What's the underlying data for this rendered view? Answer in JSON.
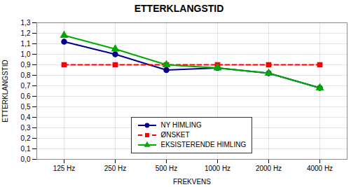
{
  "chart_data": {
    "type": "line",
    "title": "ETTERKLANGSTID",
    "xlabel": "FREKVENS",
    "ylabel": "ETTERKLANGSTID",
    "categories": [
      "125 Hz",
      "250 Hz",
      "500 Hz",
      "1000 Hz",
      "2000 Hz",
      "4000 Hz"
    ],
    "series": [
      {
        "name": "NY HIMLING",
        "color": "#00008B",
        "marker": "circle",
        "line_style": "solid",
        "values": [
          1.12,
          1.0,
          0.85,
          0.87,
          0.82,
          0.68
        ]
      },
      {
        "name": "ØNSKET",
        "color": "#FF0000",
        "marker": "square",
        "line_style": "dashed",
        "values": [
          0.9,
          0.9,
          0.9,
          0.9,
          0.9,
          0.9
        ]
      },
      {
        "name": "EKSISTERENDE HIMLING",
        "color": "#00AA00",
        "marker": "triangle",
        "line_style": "solid",
        "values": [
          1.18,
          1.05,
          0.9,
          0.87,
          0.82,
          0.68
        ]
      }
    ],
    "ylim": [
      0.0,
      1.3
    ],
    "yticks": [
      {
        "value": 0.0,
        "label": "0,0"
      },
      {
        "value": 0.1,
        "label": "0,1"
      },
      {
        "value": 0.2,
        "label": "0,2"
      },
      {
        "value": 0.3,
        "label": "0,3"
      },
      {
        "value": 0.4,
        "label": "0,4"
      },
      {
        "value": 0.5,
        "label": "0,5"
      },
      {
        "value": 0.6,
        "label": "0,6"
      },
      {
        "value": 0.7,
        "label": "0,7"
      },
      {
        "value": 0.8,
        "label": "0,8"
      },
      {
        "value": 0.9,
        "label": "0,9"
      },
      {
        "value": 1.0,
        "label": "1,0"
      },
      {
        "value": 1.1,
        "label": "1,1"
      },
      {
        "value": 1.2,
        "label": "1,2"
      },
      {
        "value": 1.3,
        "label": "1,3"
      }
    ],
    "grid": true,
    "legend": "lower center"
  }
}
